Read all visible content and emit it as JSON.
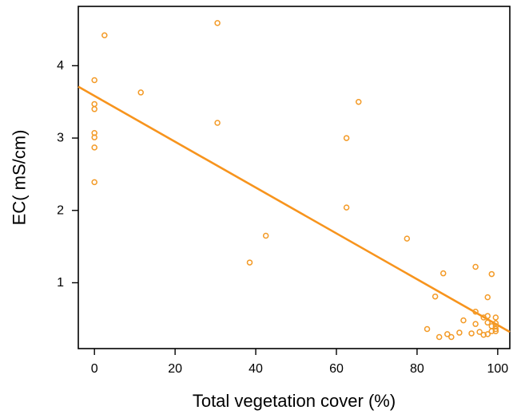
{
  "chart_data": {
    "type": "scatter",
    "xlabel": "Total vegetation cover (%)",
    "ylabel": "EC( mS/cm)",
    "xlim": [
      -4,
      103
    ],
    "ylim": [
      0.09,
      4.82
    ],
    "xticks": [
      0,
      20,
      40,
      60,
      80,
      100
    ],
    "yticks": [
      1,
      2,
      3,
      4
    ],
    "grid": false,
    "colors": {
      "series": "#f39a26",
      "fit_line": "#f7941d",
      "axis": "#000000"
    },
    "series": [
      {
        "marker": "open-circle",
        "points": [
          [
            0,
            3.8
          ],
          [
            0,
            3.47
          ],
          [
            0,
            3.4
          ],
          [
            0,
            3.07
          ],
          [
            0,
            3.01
          ],
          [
            0,
            2.87
          ],
          [
            0,
            2.39
          ],
          [
            2.5,
            4.42
          ],
          [
            11.5,
            3.63
          ],
          [
            30.5,
            4.59
          ],
          [
            30.5,
            3.21
          ],
          [
            38.5,
            1.28
          ],
          [
            42.5,
            1.65
          ],
          [
            62.5,
            3.0
          ],
          [
            62.5,
            2.04
          ],
          [
            65.5,
            3.5
          ],
          [
            77.5,
            1.61
          ],
          [
            82.5,
            0.36
          ],
          [
            84.5,
            0.81
          ],
          [
            85.5,
            0.25
          ],
          [
            86.5,
            1.13
          ],
          [
            87.5,
            0.29
          ],
          [
            88.5,
            0.25
          ],
          [
            90.5,
            0.31
          ],
          [
            91.5,
            0.48
          ],
          [
            93.5,
            0.3
          ],
          [
            94.5,
            1.22
          ],
          [
            94.5,
            0.6
          ],
          [
            94.5,
            0.43
          ],
          [
            95.5,
            0.32
          ],
          [
            96.5,
            0.52
          ],
          [
            96.5,
            0.28
          ],
          [
            97.5,
            0.8
          ],
          [
            97.5,
            0.54
          ],
          [
            97.5,
            0.45
          ],
          [
            97.5,
            0.29
          ],
          [
            98.5,
            1.12
          ],
          [
            98.5,
            0.4
          ],
          [
            98.5,
            0.33
          ],
          [
            99.5,
            0.52
          ],
          [
            99.5,
            0.44
          ],
          [
            99.5,
            0.4
          ],
          [
            99.5,
            0.36
          ],
          [
            99.5,
            0.33
          ]
        ]
      }
    ],
    "fit_line": {
      "points": [
        [
          -4,
          3.71
        ],
        [
          103,
          0.32
        ]
      ]
    }
  }
}
